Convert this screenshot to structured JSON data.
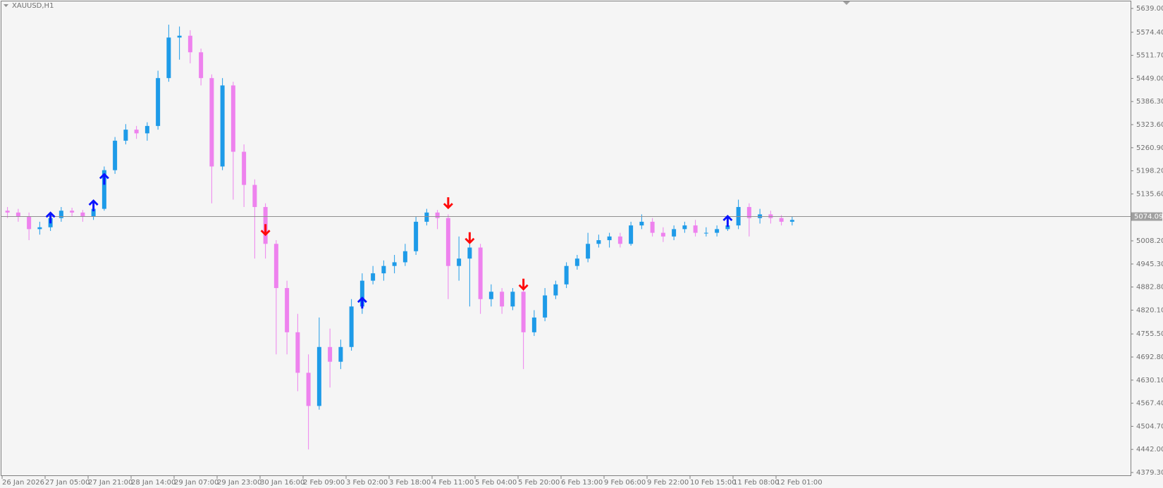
{
  "chart_data": {
    "type": "candlestick",
    "title": "XAUUSD,H1",
    "up_color": "#1e9be8",
    "down_color": "#ee82ee",
    "buy_color": "#0a14ff",
    "sell_color": "#ff0a0a",
    "categories": [
      "26 Jan 2026",
      null,
      null,
      null,
      "27 Jan 05:00",
      null,
      null,
      null,
      "27 Jan 21:00",
      null,
      null,
      null,
      "28 Jan 14:00",
      null,
      null,
      null,
      "29 Jan 07:00",
      null,
      null,
      null,
      "29 Jan 23:00",
      null,
      null,
      null,
      "30 Jan 16:00",
      null,
      null,
      null,
      "2 Feb 09:00",
      null,
      null,
      null,
      "3 Feb 02:00",
      null,
      null,
      null,
      "3 Feb 18:00",
      null,
      null,
      null,
      "4 Feb 11:00",
      null,
      null,
      null,
      "5 Feb 04:00",
      null,
      null,
      null,
      "5 Feb 20:00",
      null,
      null,
      null,
      "6 Feb 13:00",
      null,
      null,
      null,
      "9 Feb 06:00",
      null,
      null,
      null,
      "9 Feb 22:00",
      null,
      null,
      null,
      "10 Feb 15:00",
      null,
      null,
      null,
      "11 Feb 08:00",
      null,
      null,
      null,
      "12 Feb 01:00",
      null
    ],
    "open": [
      5090,
      5085,
      5075,
      5040,
      5045,
      5070,
      5090,
      5085,
      5075,
      5095,
      5200,
      5280,
      5310,
      5300,
      5320,
      5450,
      5560,
      5565,
      5520,
      5450,
      5210,
      5430,
      5250,
      5160,
      5100,
      5000,
      4880,
      4760,
      4650,
      4560,
      4720,
      4680,
      4720,
      4830,
      4900,
      4920,
      4940,
      4950,
      4980,
      5060,
      5085,
      5070,
      4940,
      4960,
      4990,
      4850,
      4870,
      4830,
      4870,
      4760,
      4800,
      4860,
      4890,
      4940,
      4960,
      5000,
      5010,
      5020,
      5000,
      5050,
      5060,
      5030,
      5020,
      5040,
      5050,
      5030,
      5030,
      5040,
      5050,
      5100,
      5070,
      5080,
      5070,
      5060
    ],
    "high": [
      5100,
      5095,
      5085,
      5060,
      5080,
      5100,
      5098,
      5092,
      5100,
      5210,
      5290,
      5325,
      5320,
      5330,
      5470,
      5595,
      5590,
      5580,
      5530,
      5460,
      5450,
      5440,
      5270,
      5175,
      5110,
      5010,
      4900,
      4810,
      4700,
      4800,
      4770,
      4740,
      4850,
      4920,
      4940,
      4955,
      4970,
      5000,
      5075,
      5095,
      5092,
      5080,
      5020,
      5010,
      5000,
      4890,
      4880,
      4880,
      4890,
      4820,
      4880,
      4900,
      4950,
      4970,
      5030,
      5025,
      5030,
      5030,
      5060,
      5080,
      5070,
      5045,
      5050,
      5060,
      5065,
      5045,
      5050,
      5060,
      5120,
      5110,
      5095,
      5090,
      5078,
      5075
    ],
    "low": [
      5070,
      5060,
      5010,
      5025,
      5035,
      5060,
      5075,
      5060,
      5065,
      5090,
      5190,
      5270,
      5285,
      5280,
      5310,
      5440,
      5500,
      5490,
      5430,
      5110,
      5200,
      5120,
      5100,
      4960,
      4960,
      4700,
      4700,
      4600,
      4442,
      4550,
      4610,
      4660,
      4710,
      4810,
      4890,
      4900,
      4920,
      4940,
      4970,
      5050,
      5040,
      4850,
      4900,
      4830,
      4810,
      4830,
      4810,
      4820,
      4660,
      4750,
      4790,
      4850,
      4880,
      4930,
      4950,
      4990,
      4990,
      4990,
      4995,
      5040,
      5020,
      5005,
      5010,
      5030,
      5020,
      5020,
      5020,
      5035,
      5040,
      5020,
      5055,
      5055,
      5050,
      5050
    ],
    "close": [
      5085,
      5075,
      5040,
      5045,
      5070,
      5090,
      5085,
      5075,
      5095,
      5200,
      5280,
      5310,
      5300,
      5320,
      5450,
      5560,
      5565,
      5520,
      5450,
      5210,
      5430,
      5250,
      5160,
      5100,
      5000,
      4880,
      4760,
      4650,
      4560,
      4720,
      4680,
      4720,
      4830,
      4900,
      4920,
      4940,
      4950,
      4980,
      5060,
      5085,
      5070,
      4940,
      4960,
      4990,
      4850,
      4870,
      4830,
      4870,
      4760,
      4800,
      4860,
      4890,
      4940,
      4960,
      5000,
      5010,
      5020,
      5000,
      5050,
      5060,
      5030,
      5020,
      5040,
      5050,
      5030,
      5030,
      5040,
      5050,
      5100,
      5070,
      5080,
      5070,
      5060,
      5065
    ],
    "signals": [
      {
        "index": 4,
        "value": 5088,
        "direction": "up"
      },
      {
        "index": 8,
        "value": 5121,
        "direction": "up"
      },
      {
        "index": 9,
        "value": 5193,
        "direction": "up"
      },
      {
        "index": 33,
        "value": 4857,
        "direction": "up"
      },
      {
        "index": 67,
        "value": 5079,
        "direction": "up"
      },
      {
        "index": 24,
        "value": 5021,
        "direction": "down"
      },
      {
        "index": 41,
        "value": 5094,
        "direction": "down"
      },
      {
        "index": 43,
        "value": 4999,
        "direction": "down"
      },
      {
        "index": 48,
        "value": 4873,
        "direction": "down"
      }
    ],
    "last_price": 5074.09,
    "ylim": [
      4379.3,
      5639
    ],
    "yticks": [
      {
        "value": 5639,
        "label": "5639.00"
      },
      {
        "value": 5574.4,
        "label": "5574.40"
      },
      {
        "value": 5511.7,
        "label": "5511.70"
      },
      {
        "value": 5449,
        "label": "5449.00"
      },
      {
        "value": 5386.3,
        "label": "5386.30"
      },
      {
        "value": 5323.6,
        "label": "5323.60"
      },
      {
        "value": 5260.9,
        "label": "5260.90"
      },
      {
        "value": 5198.2,
        "label": "5198.20"
      },
      {
        "value": 5135.6,
        "label": "5135.60"
      },
      {
        "value": 5008.2,
        "label": "5008.20"
      },
      {
        "value": 4945.3,
        "label": "4945.30"
      },
      {
        "value": 4882.8,
        "label": "4882.80"
      },
      {
        "value": 4820.1,
        "label": "4820.10"
      },
      {
        "value": 4755.5,
        "label": "4755.50"
      },
      {
        "value": 4692.8,
        "label": "4692.80"
      },
      {
        "value": 4630.1,
        "label": "4630.10"
      },
      {
        "value": 4567.4,
        "label": "4567.40"
      },
      {
        "value": 4504.7,
        "label": "4504.70"
      },
      {
        "value": 4442,
        "label": "4442.00"
      },
      {
        "value": 4379.3,
        "label": "4379.30"
      }
    ]
  }
}
